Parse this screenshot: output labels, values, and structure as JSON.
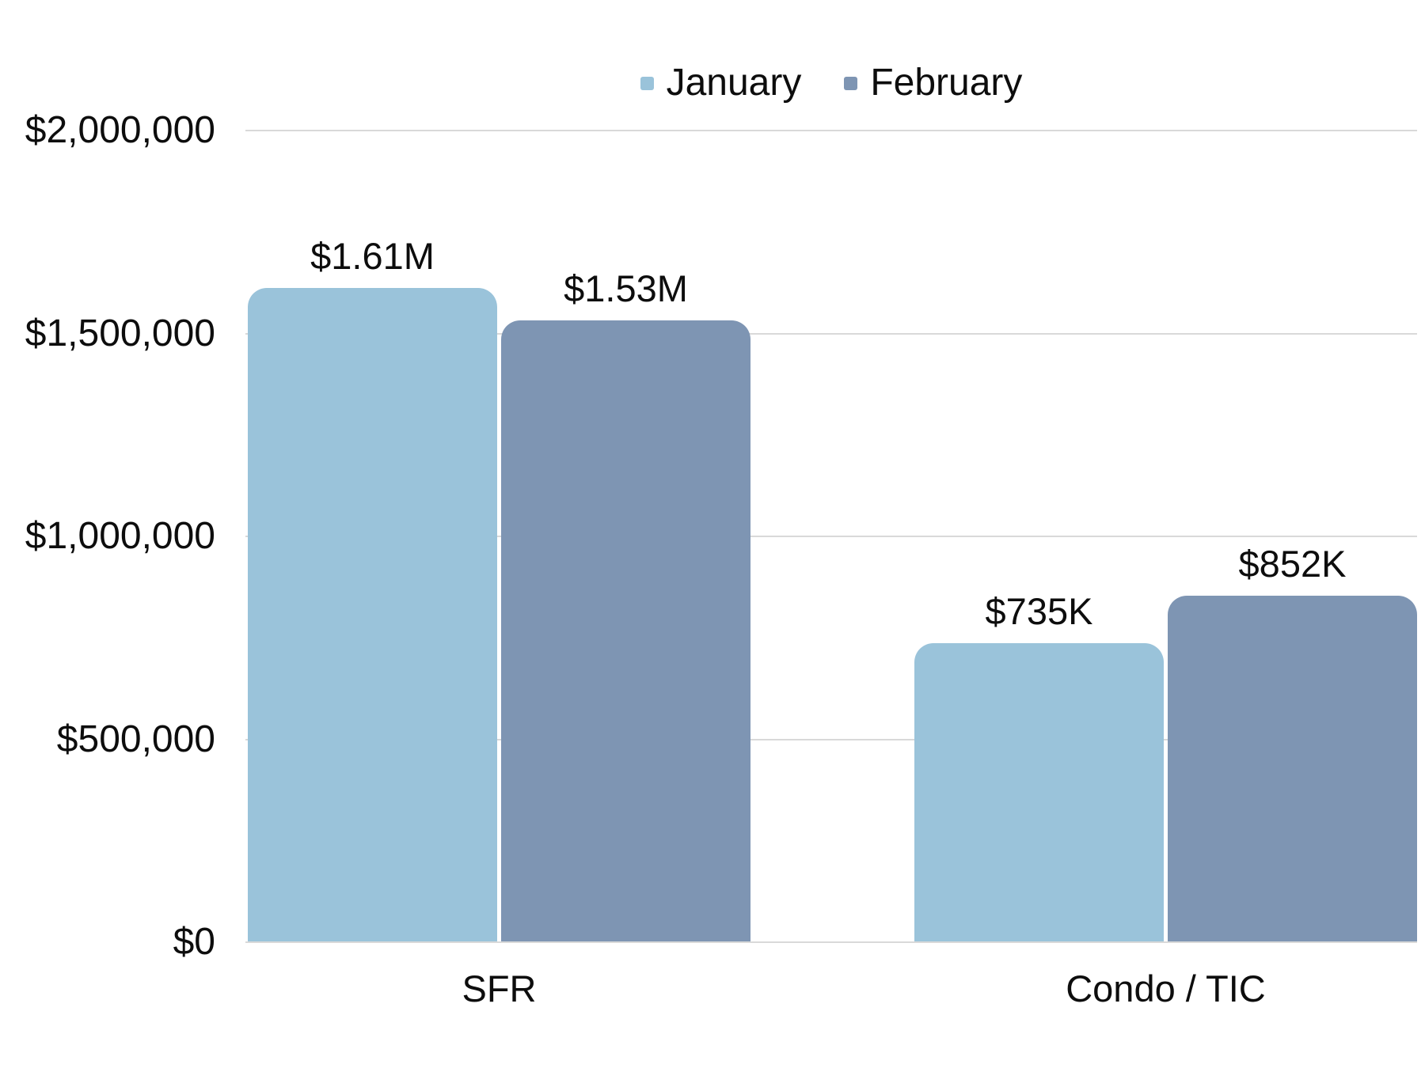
{
  "chart_data": {
    "type": "bar",
    "title": "",
    "categories": [
      "SFR",
      "Condo / TIC"
    ],
    "series": [
      {
        "name": "January",
        "color": "#9AC3DA",
        "values": [
          1610000,
          735000
        ],
        "labels": [
          "$1.61M",
          "$735K"
        ]
      },
      {
        "name": "February",
        "color": "#7E95B3",
        "values": [
          1530000,
          852000
        ],
        "labels": [
          "$1.53M",
          "$852K"
        ]
      }
    ],
    "ylim": [
      0,
      2000000
    ],
    "yticks": [
      {
        "value": 0,
        "label": "$0"
      },
      {
        "value": 500000,
        "label": "$500,000"
      },
      {
        "value": 1000000,
        "label": "$1,000,000"
      },
      {
        "value": 1500000,
        "label": "$1,500,000"
      },
      {
        "value": 2000000,
        "label": "$2,000,000"
      }
    ],
    "legend_position": "top",
    "grid": "horizontal",
    "colors": {
      "grid": "#D9D9D9",
      "text": "#0D0D0D",
      "background": "#FFFFFF"
    }
  }
}
